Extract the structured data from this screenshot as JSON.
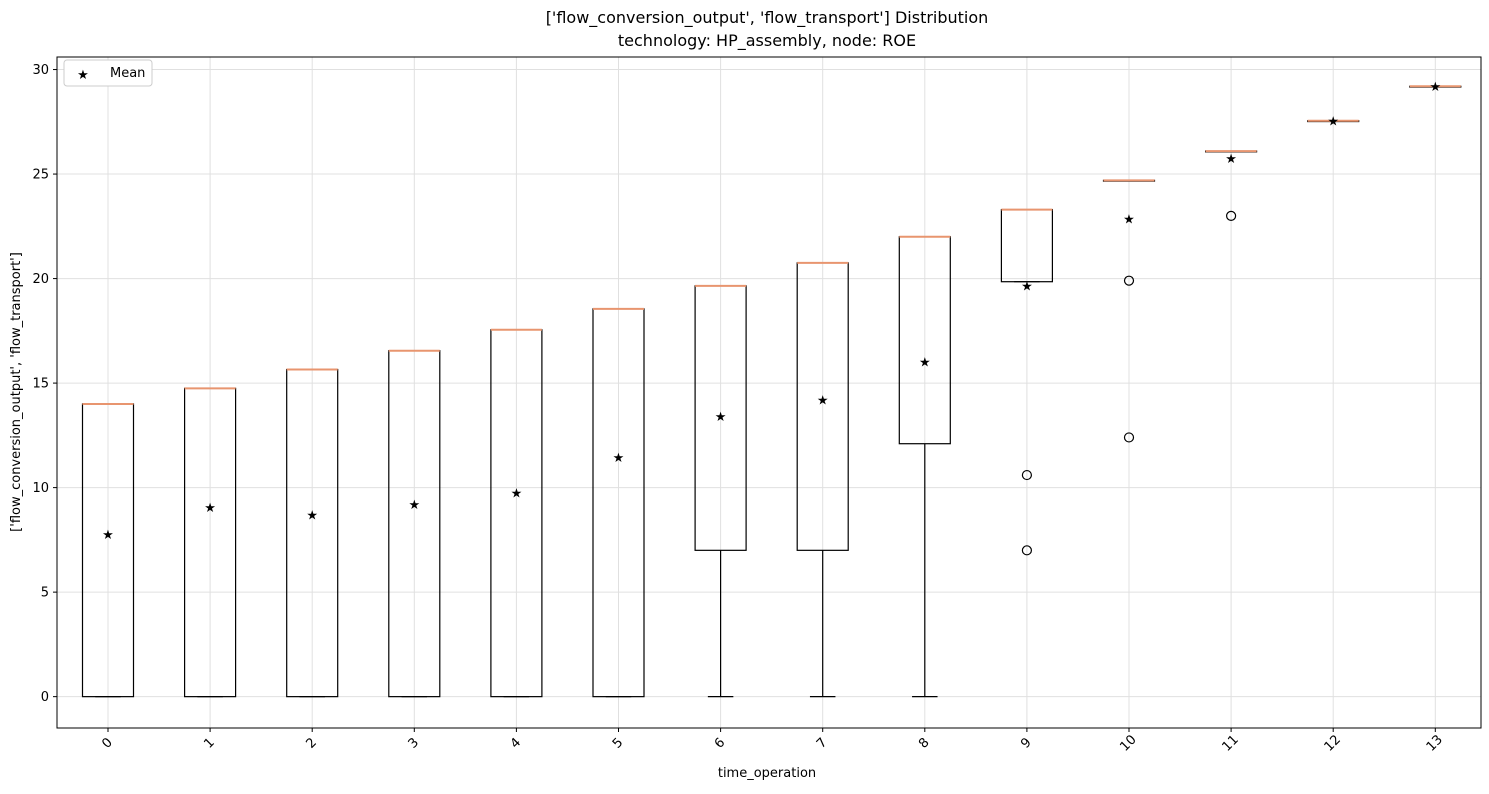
{
  "chart_data": {
    "type": "box",
    "title": "['flow_conversion_output', 'flow_transport'] Distribution",
    "subtitle": "technology: HP_assembly, node: ROE",
    "xlabel": "time_operation",
    "ylabel": "['flow_conversion_output', 'flow_transport']",
    "ylim": [
      -1.5,
      30.6
    ],
    "yticks": [
      0,
      5,
      10,
      15,
      20,
      25,
      30
    ],
    "grid": true,
    "legend": {
      "position": "upper-left",
      "entries": [
        {
          "label": "Mean",
          "marker": "red-star"
        }
      ]
    },
    "colors": {
      "box": "#000000",
      "median": "#e8956f",
      "mean": "#ff0000",
      "grid": "#e0e0e0"
    },
    "categories": [
      "0",
      "1",
      "2",
      "3",
      "4",
      "5",
      "6",
      "7",
      "8",
      "9",
      "10",
      "11",
      "12",
      "13"
    ],
    "boxes": [
      {
        "category": "0",
        "whisker_low": 0,
        "q1": 0,
        "median": 14.0,
        "q3": 14.0,
        "whisker_high": 14.0,
        "mean": 7.75,
        "outliers": []
      },
      {
        "category": "1",
        "whisker_low": 0,
        "q1": 0,
        "median": 14.75,
        "q3": 14.75,
        "whisker_high": 14.75,
        "mean": 9.05,
        "outliers": []
      },
      {
        "category": "2",
        "whisker_low": 0,
        "q1": 0,
        "median": 15.65,
        "q3": 15.65,
        "whisker_high": 15.65,
        "mean": 8.7,
        "outliers": []
      },
      {
        "category": "3",
        "whisker_low": 0,
        "q1": 0,
        "median": 16.55,
        "q3": 16.55,
        "whisker_high": 16.55,
        "mean": 9.2,
        "outliers": []
      },
      {
        "category": "4",
        "whisker_low": 0,
        "q1": 0,
        "median": 17.55,
        "q3": 17.55,
        "whisker_high": 17.55,
        "mean": 9.75,
        "outliers": []
      },
      {
        "category": "5",
        "whisker_low": 0,
        "q1": 0,
        "median": 18.55,
        "q3": 18.55,
        "whisker_high": 18.55,
        "mean": 11.45,
        "outliers": []
      },
      {
        "category": "6",
        "whisker_low": 0,
        "q1": 7.0,
        "median": 19.65,
        "q3": 19.65,
        "whisker_high": 19.65,
        "mean": 13.4,
        "outliers": []
      },
      {
        "category": "7",
        "whisker_low": 0,
        "q1": 7.0,
        "median": 20.75,
        "q3": 20.75,
        "whisker_high": 20.75,
        "mean": 14.2,
        "outliers": []
      },
      {
        "category": "8",
        "whisker_low": 0,
        "q1": 12.1,
        "median": 22.0,
        "q3": 22.0,
        "whisker_high": 22.0,
        "mean": 16.0,
        "outliers": []
      },
      {
        "category": "9",
        "whisker_low": 19.85,
        "q1": 19.85,
        "median": 23.3,
        "q3": 23.3,
        "whisker_high": 23.3,
        "mean": 19.65,
        "outliers": [
          10.6,
          7.0
        ]
      },
      {
        "category": "10",
        "whisker_low": 24.7,
        "q1": 24.7,
        "median": 24.7,
        "q3": 24.7,
        "whisker_high": 24.7,
        "mean": 22.85,
        "outliers": [
          19.9,
          12.4
        ]
      },
      {
        "category": "11",
        "whisker_low": 26.1,
        "q1": 26.1,
        "median": 26.1,
        "q3": 26.1,
        "whisker_high": 26.1,
        "mean": 25.75,
        "outliers": [
          23.0
        ]
      },
      {
        "category": "12",
        "whisker_low": 27.55,
        "q1": 27.55,
        "median": 27.55,
        "q3": 27.55,
        "whisker_high": 27.55,
        "mean": 27.55,
        "outliers": []
      },
      {
        "category": "13",
        "whisker_low": 29.2,
        "q1": 29.2,
        "median": 29.2,
        "q3": 29.2,
        "whisker_high": 29.2,
        "mean": 29.2,
        "outliers": []
      }
    ]
  }
}
